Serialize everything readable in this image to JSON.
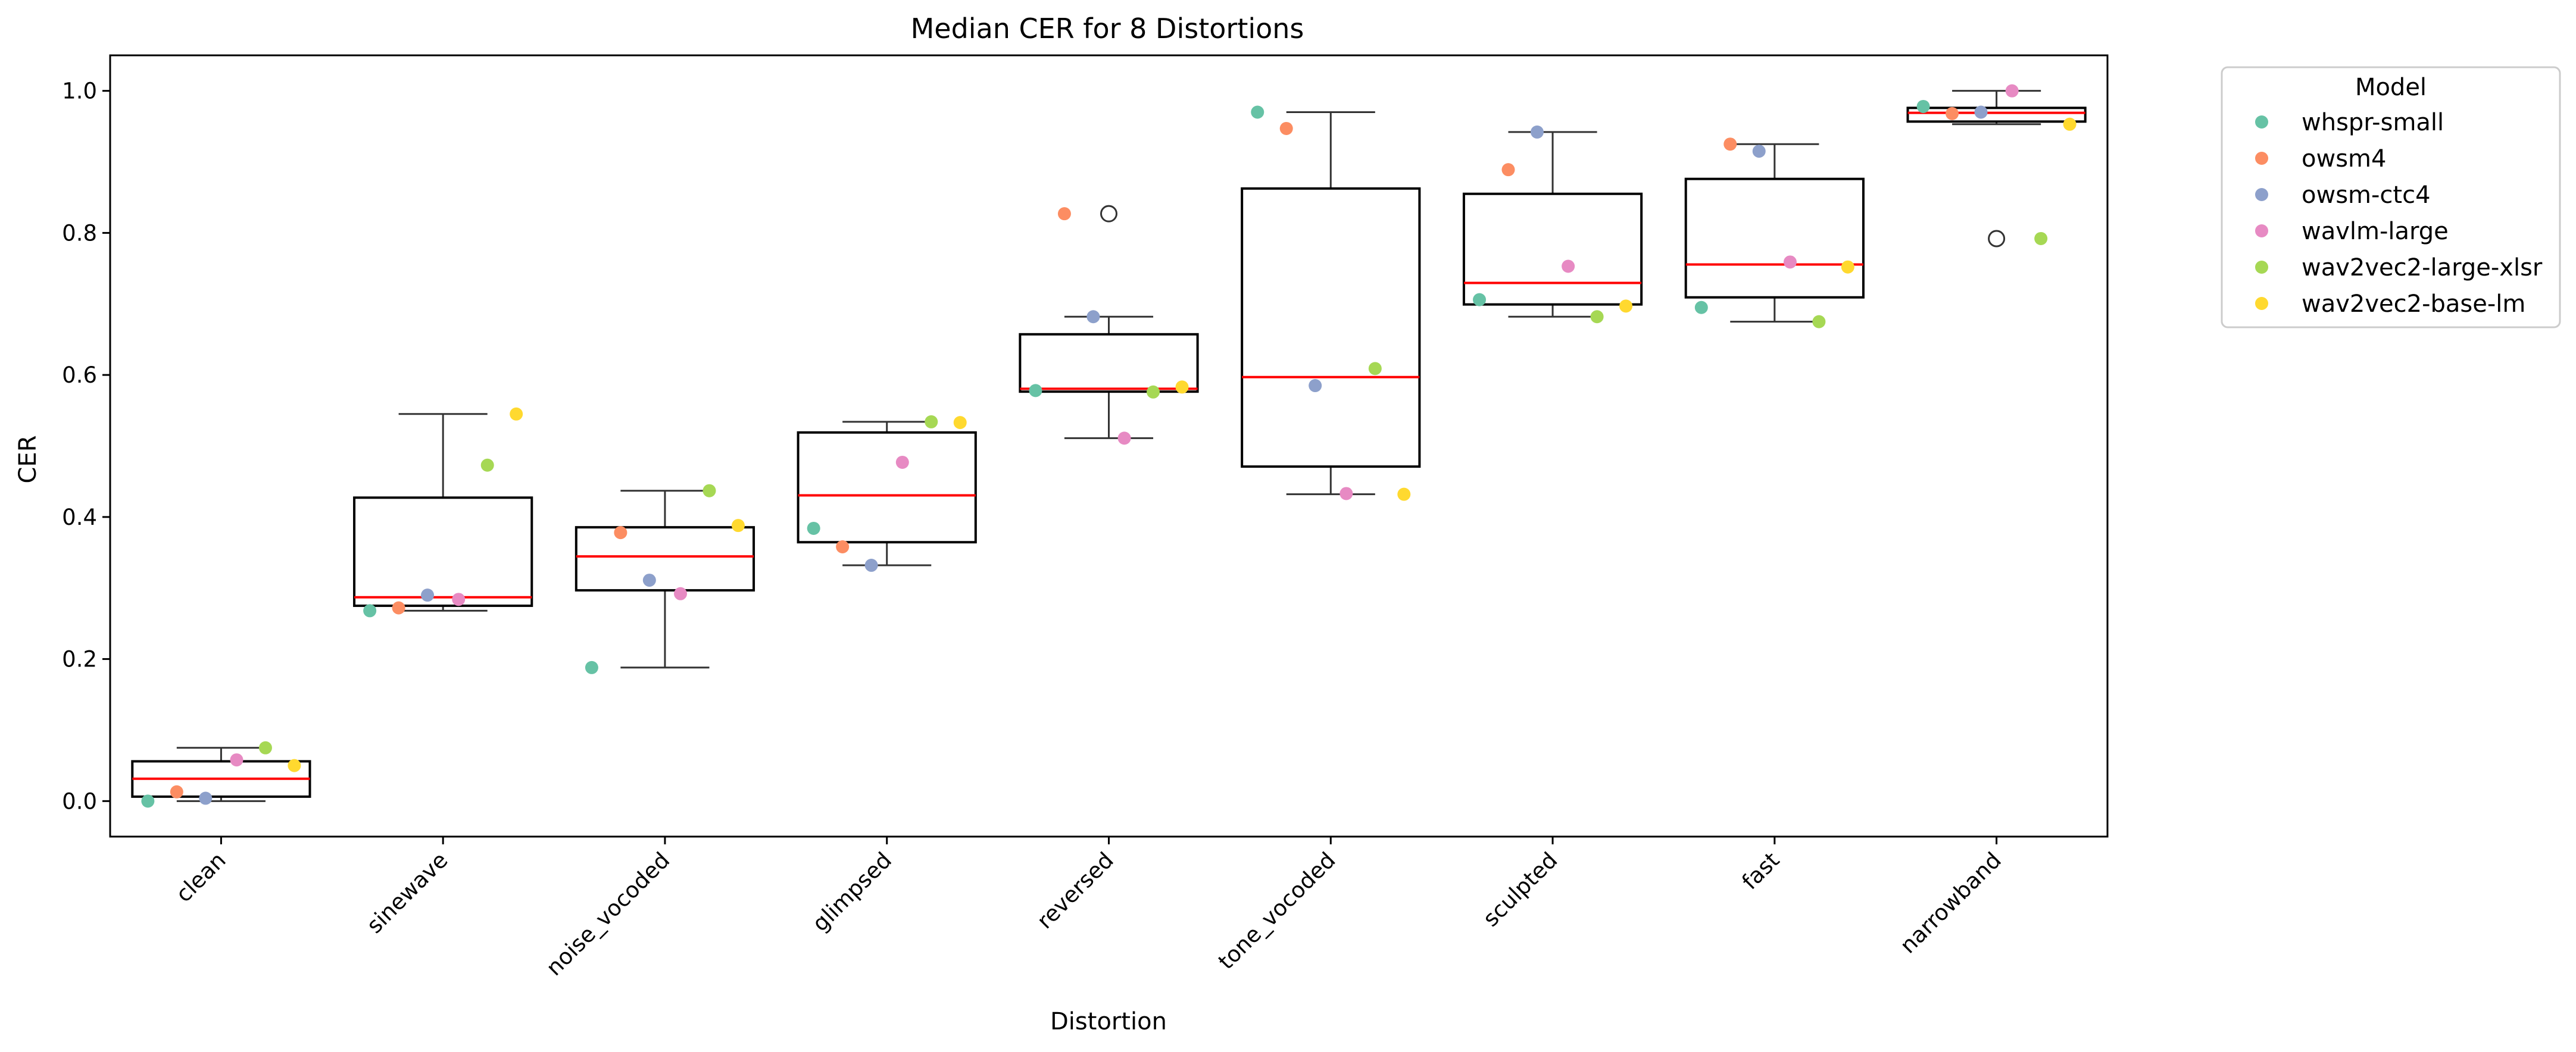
{
  "chart_data": {
    "type": "box",
    "title": "Median CER for 8 Distortions",
    "xlabel": "Distortion",
    "ylabel": "CER",
    "ylim": [
      -0.05,
      1.05
    ],
    "yticks": [
      "0.0",
      "0.2",
      "0.4",
      "0.6",
      "0.8",
      "1.0"
    ],
    "categories": [
      "clean",
      "sinewave",
      "noise_vocoded",
      "glimpsed",
      "reversed",
      "tone_vocoded",
      "sculpted",
      "fast",
      "narrowband"
    ],
    "legend": {
      "title": "Model",
      "position": "outside-right-top"
    },
    "grid": false,
    "box_colors": {
      "box": "#000000",
      "median": "#ff0000",
      "whisker": "#333333"
    },
    "series": [
      {
        "name": "whspr-small",
        "color": "#66c2a5",
        "values": [
          0.0,
          0.268,
          0.188,
          0.384,
          0.578,
          0.97,
          0.706,
          0.695,
          0.978
        ]
      },
      {
        "name": "owsm4",
        "color": "#fc8d62",
        "values": [
          0.013,
          0.272,
          0.378,
          0.358,
          0.827,
          0.947,
          0.889,
          0.925,
          0.968
        ]
      },
      {
        "name": "owsm-ctc4",
        "color": "#8da0cb",
        "values": [
          0.004,
          0.29,
          0.311,
          0.332,
          0.682,
          0.585,
          0.942,
          0.915,
          0.97
        ]
      },
      {
        "name": "wavlm-large",
        "color": "#e78ac3",
        "values": [
          0.058,
          0.284,
          0.292,
          0.477,
          0.511,
          0.433,
          0.753,
          0.759,
          1.0
        ]
      },
      {
        "name": "wav2vec2-large-xlsr",
        "color": "#a6d854",
        "values": [
          0.075,
          0.473,
          0.437,
          0.534,
          0.576,
          0.609,
          0.682,
          0.675,
          0.792
        ]
      },
      {
        "name": "wav2vec2-base-lm",
        "color": "#ffd92f",
        "values": [
          0.05,
          0.545,
          0.388,
          0.533,
          0.583,
          0.432,
          0.697,
          0.752,
          0.953
        ]
      }
    ]
  }
}
